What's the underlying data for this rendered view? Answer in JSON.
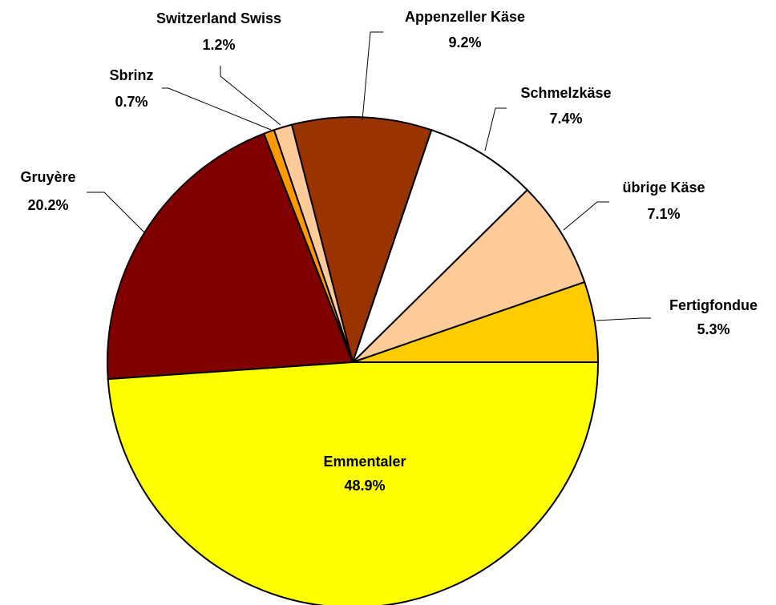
{
  "chart_data": {
    "type": "pie",
    "categories": [
      "Fertigfondue",
      "übrige Käse",
      "Schmelzkäse",
      "Appenzeller Käse",
      "Switzerland Swiss",
      "Sbrinz",
      "Gruyère",
      "Emmentaler"
    ],
    "values": [
      5.3,
      7.1,
      7.4,
      9.2,
      1.2,
      0.7,
      20.2,
      48.9
    ],
    "value_labels": [
      "5.3%",
      "7.1%",
      "7.4%",
      "9.2%",
      "1.2%",
      "0.7%",
      "20.2%",
      "48.9%"
    ],
    "colors": [
      "#FFCC00",
      "#FFCC99",
      "#FFFFFF",
      "#993300",
      "#FFCC99",
      "#FF9900",
      "#800000",
      "#FFFF00"
    ]
  }
}
